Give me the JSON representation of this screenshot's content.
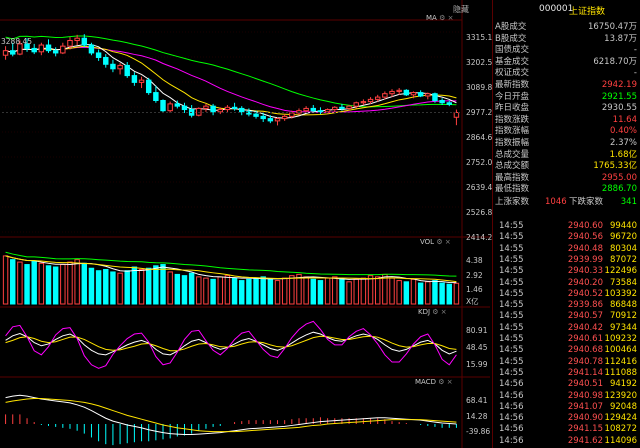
{
  "colors": {
    "up": "#ff4040",
    "down": "#00ffff",
    "ma5": "#ffffff",
    "ma10": "#ffe400",
    "ma20": "#ff00ff",
    "ma60": "#00ff00",
    "green": "#00ff00",
    "yellow": "#ffe400"
  },
  "price_panel": {
    "title": "MA",
    "high_label": "3288.45",
    "axis": [
      "3315.18",
      "3202.50",
      "3089.86",
      "2977.29",
      "2864.66",
      "2752.07",
      "2639.47",
      "2526.86",
      "2414.26"
    ]
  },
  "vol_panel": {
    "title": "VOL",
    "axis": [
      "4.38",
      "2.92",
      "1.46"
    ],
    "unit": "X亿"
  },
  "kdj_panel": {
    "title": "KDJ",
    "axis": [
      "80.91",
      "48.45",
      "15.99"
    ]
  },
  "macd_panel": {
    "title": "MACD",
    "axis": [
      "68.41",
      "14.28",
      "-39.86"
    ]
  },
  "header": {
    "hide_label": "隐藏",
    "code": "000001",
    "name": "上证指数"
  },
  "quote_rows": [
    {
      "label": "A股成交",
      "value": "16750.47万",
      "color": "#c8c8c8"
    },
    {
      "label": "B股成交",
      "value": "13.87万",
      "color": "#c8c8c8"
    },
    {
      "label": "国债成交",
      "value": "-",
      "color": "#c8c8c8"
    },
    {
      "label": "基金成交",
      "value": "6218.70万",
      "color": "#c8c8c8"
    },
    {
      "label": "权证成交",
      "value": "-",
      "color": "#c8c8c8"
    },
    {
      "label": "最新指数",
      "value": "2942.19",
      "color": "#ff4040"
    },
    {
      "label": "今日开盘",
      "value": "2921.55",
      "color": "#00ff00"
    },
    {
      "label": "昨日收盘",
      "value": "2930.55",
      "color": "#c8c8c8"
    },
    {
      "label": "指数涨跌",
      "value": "11.64",
      "color": "#ff4040"
    },
    {
      "label": "指数涨幅",
      "value": "0.40%",
      "color": "#ff4040"
    },
    {
      "label": "指数振幅",
      "value": "2.37%",
      "color": "#c8c8c8"
    },
    {
      "label": "总成交量",
      "value": "1.68亿",
      "color": "#ffe400"
    },
    {
      "label": "总成交额",
      "value": "1765.33亿",
      "color": "#ffe400"
    },
    {
      "label": "最高指数",
      "value": "2955.00",
      "color": "#ff4040"
    },
    {
      "label": "最低指数",
      "value": "2886.70",
      "color": "#00ff00"
    }
  ],
  "updown": {
    "up_label": "上涨家数",
    "up_count": "1046",
    "down_label": "下跌家数",
    "down_count": "341"
  },
  "ticks": [
    {
      "time": "14:55",
      "price": "2940.60",
      "vol": "99440"
    },
    {
      "time": "14:55",
      "price": "2940.56",
      "vol": "96720"
    },
    {
      "time": "14:55",
      "price": "2940.48",
      "vol": "80304"
    },
    {
      "time": "14:55",
      "price": "2939.99",
      "vol": "87072"
    },
    {
      "time": "14:55",
      "price": "2940.33",
      "vol": "122496"
    },
    {
      "time": "14:55",
      "price": "2940.20",
      "vol": "73584"
    },
    {
      "time": "14:55",
      "price": "2940.52",
      "vol": "103392"
    },
    {
      "time": "14:55",
      "price": "2939.86",
      "vol": "86848"
    },
    {
      "time": "14:55",
      "price": "2940.57",
      "vol": "70912"
    },
    {
      "time": "14:55",
      "price": "2940.42",
      "vol": "97344"
    },
    {
      "time": "14:55",
      "price": "2940.61",
      "vol": "109232"
    },
    {
      "time": "14:55",
      "price": "2940.68",
      "vol": "100464"
    },
    {
      "time": "14:55",
      "price": "2940.78",
      "vol": "112416"
    },
    {
      "time": "14:55",
      "price": "2941.14",
      "vol": "111088"
    },
    {
      "time": "14:56",
      "price": "2940.51",
      "vol": "94192"
    },
    {
      "time": "14:56",
      "price": "2940.98",
      "vol": "123920"
    },
    {
      "time": "14:56",
      "price": "2941.07",
      "vol": "92048"
    },
    {
      "time": "14:56",
      "price": "2940.90",
      "vol": "129424"
    },
    {
      "time": "14:56",
      "price": "2941.15",
      "vol": "108272"
    },
    {
      "time": "14:56",
      "price": "2941.62",
      "vol": "114096"
    }
  ],
  "chart_data": {
    "type": "candlestick",
    "price_range": [
      2414.26,
      3315.18
    ],
    "candles": [
      [
        3195,
        3235,
        3175,
        3215
      ],
      [
        3215,
        3250,
        3190,
        3200
      ],
      [
        3200,
        3260,
        3195,
        3245
      ],
      [
        3245,
        3270,
        3210,
        3225
      ],
      [
        3225,
        3245,
        3200,
        3210
      ],
      [
        3210,
        3250,
        3195,
        3240
      ],
      [
        3240,
        3265,
        3205,
        3215
      ],
      [
        3215,
        3230,
        3190,
        3205
      ],
      [
        3205,
        3250,
        3200,
        3235
      ],
      [
        3235,
        3275,
        3220,
        3260
      ],
      [
        3260,
        3285,
        3240,
        3270
      ],
      [
        3270,
        3288,
        3230,
        3240
      ],
      [
        3240,
        3250,
        3195,
        3205
      ],
      [
        3205,
        3220,
        3170,
        3185
      ],
      [
        3185,
        3200,
        3140,
        3155
      ],
      [
        3155,
        3175,
        3120,
        3135
      ],
      [
        3135,
        3160,
        3110,
        3150
      ],
      [
        3150,
        3165,
        3095,
        3105
      ],
      [
        3105,
        3120,
        3060,
        3075
      ],
      [
        3075,
        3100,
        3050,
        3085
      ],
      [
        3085,
        3095,
        3020,
        3030
      ],
      [
        3030,
        3060,
        2985,
        2995
      ],
      [
        2995,
        3000,
        2940,
        2950
      ],
      [
        2950,
        2990,
        2940,
        2980
      ],
      [
        2980,
        2995,
        2960,
        2970
      ],
      [
        2970,
        2985,
        2940,
        2955
      ],
      [
        2955,
        2975,
        2920,
        2930
      ],
      [
        2930,
        2965,
        2925,
        2960
      ],
      [
        2960,
        2980,
        2945,
        2970
      ],
      [
        2970,
        2980,
        2930,
        2945
      ],
      [
        2945,
        2965,
        2935,
        2955
      ],
      [
        2955,
        2975,
        2940,
        2965
      ],
      [
        2965,
        2985,
        2950,
        2960
      ],
      [
        2960,
        2970,
        2930,
        2945
      ],
      [
        2945,
        2960,
        2925,
        2935
      ],
      [
        2935,
        2950,
        2915,
        2925
      ],
      [
        2925,
        2940,
        2900,
        2915
      ],
      [
        2915,
        2930,
        2895,
        2905
      ],
      [
        2905,
        2920,
        2885,
        2915
      ],
      [
        2915,
        2935,
        2905,
        2925
      ],
      [
        2925,
        2950,
        2915,
        2940
      ],
      [
        2940,
        2960,
        2930,
        2950
      ],
      [
        2950,
        2970,
        2940,
        2960
      ],
      [
        2960,
        2975,
        2945,
        2950
      ],
      [
        2950,
        2965,
        2935,
        2945
      ],
      [
        2945,
        2960,
        2935,
        2955
      ],
      [
        2955,
        2970,
        2945,
        2965
      ],
      [
        2965,
        2980,
        2950,
        2960
      ],
      [
        2960,
        2975,
        2950,
        2970
      ],
      [
        2970,
        2990,
        2960,
        2985
      ],
      [
        2985,
        3000,
        2975,
        2990
      ],
      [
        2990,
        3010,
        2980,
        3000
      ],
      [
        3000,
        3020,
        2990,
        3010
      ],
      [
        3010,
        3035,
        3000,
        3025
      ],
      [
        3025,
        3045,
        3010,
        3035
      ],
      [
        3035,
        3050,
        3020,
        3040
      ],
      [
        3040,
        3045,
        3015,
        3020
      ],
      [
        3020,
        3035,
        3005,
        3030
      ],
      [
        3030,
        3040,
        3010,
        3015
      ],
      [
        3015,
        3030,
        3000,
        3025
      ],
      [
        3025,
        3030,
        2985,
        2995
      ],
      [
        2995,
        3005,
        2975,
        2985
      ],
      [
        2985,
        2995,
        2970,
        2978
      ],
      [
        2921,
        2955,
        2886,
        2942
      ]
    ],
    "volumes": [
      3.9,
      3.6,
      3.4,
      3.2,
      3.5,
      3.3,
      3.1,
      3.0,
      3.2,
      3.4,
      3.6,
      3.3,
      2.9,
      2.7,
      2.8,
      2.6,
      2.5,
      2.7,
      3.0,
      2.8,
      2.9,
      3.1,
      3.2,
      2.6,
      2.4,
      2.3,
      2.5,
      2.2,
      2.1,
      2.0,
      2.2,
      2.3,
      2.1,
      1.9,
      2.0,
      2.1,
      2.2,
      2.0,
      1.9,
      2.1,
      2.3,
      2.4,
      2.2,
      2.0,
      1.9,
      2.1,
      2.2,
      2.0,
      1.8,
      2.0,
      2.1,
      2.3,
      2.2,
      2.4,
      2.1,
      1.9,
      1.8,
      2.0,
      1.7,
      1.8,
      1.9,
      1.7,
      1.6,
      1.68
    ],
    "kdj": {
      "k": [
        60,
        70,
        75,
        68,
        55,
        48,
        52,
        62,
        70,
        74,
        66,
        50,
        38,
        30,
        28,
        35,
        42,
        50,
        56,
        60,
        54,
        40,
        30,
        28,
        36,
        48,
        58,
        62,
        55,
        46,
        40,
        44,
        52,
        60,
        64,
        58,
        50,
        42,
        38,
        44,
        54,
        64,
        72,
        78,
        74,
        66,
        60,
        58,
        64,
        70,
        74,
        70,
        62,
        50,
        40,
        36,
        40,
        48,
        56,
        60,
        52,
        38,
        30,
        36
      ],
      "d": [
        55,
        60,
        66,
        68,
        64,
        58,
        55,
        57,
        62,
        67,
        67,
        62,
        54,
        46,
        40,
        38,
        39,
        43,
        47,
        52,
        53,
        48,
        42,
        37,
        37,
        41,
        47,
        52,
        53,
        50,
        46,
        45,
        47,
        52,
        56,
        57,
        55,
        50,
        46,
        45,
        48,
        54,
        60,
        66,
        69,
        68,
        65,
        62,
        62,
        65,
        68,
        69,
        67,
        61,
        54,
        48,
        45,
        46,
        50,
        53,
        53,
        48,
        42,
        40
      ],
      "j": [
        70,
        90,
        93,
        68,
        37,
        28,
        46,
        72,
        86,
        88,
        64,
        26,
        6,
        -2,
        4,
        29,
        48,
        64,
        74,
        76,
        56,
        24,
        6,
        10,
        34,
        62,
        80,
        82,
        59,
        38,
        28,
        42,
        62,
        76,
        80,
        60,
        40,
        26,
        22,
        42,
        66,
        84,
        96,
        102,
        84,
        62,
        50,
        50,
        68,
        80,
        86,
        72,
        52,
        28,
        12,
        12,
        30,
        52,
        68,
        74,
        50,
        18,
        6,
        28
      ]
    },
    "macd": {
      "dif": [
        55,
        58,
        60,
        58,
        55,
        52,
        50,
        48,
        46,
        44,
        40,
        35,
        28,
        20,
        12,
        6,
        2,
        -2,
        -5,
        -8,
        -12,
        -15,
        -18,
        -20,
        -21,
        -22,
        -22,
        -21,
        -20,
        -19,
        -18,
        -16,
        -14,
        -12,
        -10,
        -9,
        -8,
        -7,
        -6,
        -5,
        -3,
        -1,
        1,
        3,
        5,
        6,
        7,
        8,
        9,
        10,
        11,
        12,
        13,
        13,
        12,
        11,
        10,
        9,
        8,
        6,
        4,
        2,
        1,
        0
      ],
      "dea": [
        45,
        48,
        50,
        52,
        53,
        53,
        52,
        51,
        50,
        49,
        47,
        45,
        42,
        38,
        33,
        28,
        23,
        18,
        14,
        10,
        6,
        2,
        -2,
        -5,
        -8,
        -10,
        -12,
        -14,
        -15,
        -16,
        -16,
        -16,
        -16,
        -15,
        -14,
        -13,
        -12,
        -11,
        -10,
        -9,
        -8,
        -7,
        -5,
        -3,
        -2,
        0,
        1,
        2,
        3,
        4,
        5,
        6,
        7,
        8,
        9,
        9,
        9,
        9,
        9,
        8,
        7,
        6,
        5,
        4
      ],
      "hist": [
        20,
        20,
        20,
        12,
        4,
        -2,
        -4,
        -6,
        -8,
        -10,
        -14,
        -20,
        -28,
        -36,
        -42,
        -44,
        -42,
        -40,
        -38,
        -36,
        -36,
        -34,
        -32,
        -30,
        -26,
        -24,
        -20,
        -14,
        -10,
        -6,
        -4,
        0,
        4,
        6,
        8,
        8,
        8,
        8,
        8,
        8,
        10,
        12,
        12,
        12,
        14,
        12,
        12,
        12,
        12,
        12,
        12,
        12,
        12,
        10,
        6,
        4,
        2,
        0,
        -2,
        -4,
        -6,
        -8,
        -8,
        -8
      ]
    }
  }
}
